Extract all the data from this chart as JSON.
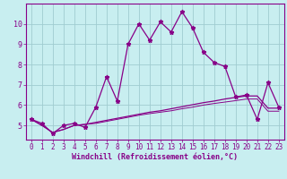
{
  "xlabel": "Windchill (Refroidissement éolien,°C)",
  "background_color": "#c8eef0",
  "grid_color": "#a0ccd0",
  "line_color": "#880088",
  "x_values": [
    0,
    1,
    2,
    3,
    4,
    5,
    6,
    7,
    8,
    9,
    10,
    11,
    12,
    13,
    14,
    15,
    16,
    17,
    18,
    19,
    20,
    21,
    22,
    23
  ],
  "line1_y": [
    5.3,
    5.1,
    4.6,
    5.0,
    5.1,
    4.9,
    5.9,
    7.4,
    6.2,
    9.0,
    10.0,
    9.2,
    10.1,
    9.6,
    10.6,
    9.8,
    8.6,
    8.1,
    7.9,
    6.4,
    6.5,
    5.3,
    7.1,
    5.9
  ],
  "line2_y": [
    5.3,
    5.0,
    4.65,
    4.8,
    5.0,
    5.05,
    5.15,
    5.25,
    5.35,
    5.45,
    5.55,
    5.65,
    5.72,
    5.82,
    5.92,
    6.02,
    6.12,
    6.2,
    6.3,
    6.38,
    6.45,
    6.45,
    5.85,
    5.85
  ],
  "line3_y": [
    5.3,
    5.0,
    4.65,
    4.8,
    5.0,
    5.05,
    5.1,
    5.2,
    5.3,
    5.4,
    5.5,
    5.58,
    5.65,
    5.72,
    5.82,
    5.9,
    6.0,
    6.08,
    6.15,
    6.22,
    6.3,
    6.3,
    5.7,
    5.7
  ],
  "ylim": [
    4.3,
    11.0
  ],
  "xlim": [
    -0.5,
    23.5
  ],
  "yticks": [
    5,
    6,
    7,
    8,
    9,
    10
  ],
  "xticks": [
    0,
    1,
    2,
    3,
    4,
    5,
    6,
    7,
    8,
    9,
    10,
    11,
    12,
    13,
    14,
    15,
    16,
    17,
    18,
    19,
    20,
    21,
    22,
    23
  ],
  "fontsize_tick": 5.5,
  "fontsize_xlabel": 6.0
}
